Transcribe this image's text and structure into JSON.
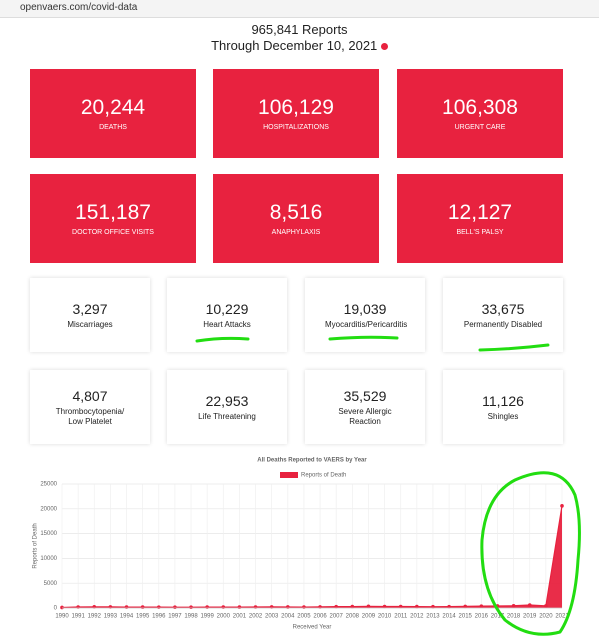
{
  "browser": {
    "url": "openvaers.com/covid-data"
  },
  "header": {
    "title": "965,841 Reports",
    "subtitle": "Through December 10, 2021"
  },
  "red_cards": [
    {
      "value": "20,244",
      "label": "DEATHS"
    },
    {
      "value": "106,129",
      "label": "HOSPITALIZATIONS"
    },
    {
      "value": "106,308",
      "label": "URGENT CARE"
    },
    {
      "value": "151,187",
      "label": "DOCTOR OFFICE VISITS"
    },
    {
      "value": "8,516",
      "label": "ANAPHYLAXIS"
    },
    {
      "value": "12,127",
      "label": "BELL'S PALSY"
    }
  ],
  "white_cards": [
    {
      "value": "3,297",
      "label": "Miscarriages"
    },
    {
      "value": "10,229",
      "label": "Heart Attacks"
    },
    {
      "value": "19,039",
      "label": "Myocarditis/Pericarditis"
    },
    {
      "value": "33,675",
      "label": "Permanently Disabled"
    },
    {
      "value": "4,807",
      "label": "Thrombocytopenia/ Low Platelet"
    },
    {
      "value": "22,953",
      "label": "Life Threatening"
    },
    {
      "value": "35,529",
      "label": "Severe Allergic Reaction"
    },
    {
      "value": "11,126",
      "label": "Shingles"
    }
  ],
  "chart_data": {
    "type": "line",
    "title": "All Deaths Reported to VAERS by Year",
    "x_label": "Received Year",
    "y_label": "Reports of Death",
    "categories": [
      "1990",
      "1991",
      "1992",
      "1993",
      "1994",
      "1995",
      "1996",
      "1997",
      "1998",
      "1999",
      "2000",
      "2001",
      "2002",
      "2003",
      "2004",
      "2005",
      "2006",
      "2007",
      "2008",
      "2009",
      "2010",
      "2011",
      "2012",
      "2013",
      "2014",
      "2015",
      "2016",
      "2017",
      "2018",
      "2019",
      "2020",
      "2021"
    ],
    "series": [
      {
        "name": "Reports of Death",
        "color": "#e8223f",
        "values": [
          110,
          200,
          240,
          220,
          190,
          180,
          170,
          160,
          160,
          190,
          190,
          180,
          200,
          220,
          210,
          190,
          220,
          270,
          280,
          340,
          300,
          300,
          280,
          260,
          270,
          330,
          380,
          420,
          450,
          600,
          430,
          20600
        ]
      }
    ],
    "ylim": [
      0,
      25000
    ],
    "yticks": [
      0,
      5000,
      10000,
      15000,
      20000,
      25000
    ],
    "grid": true,
    "fill": true
  }
}
